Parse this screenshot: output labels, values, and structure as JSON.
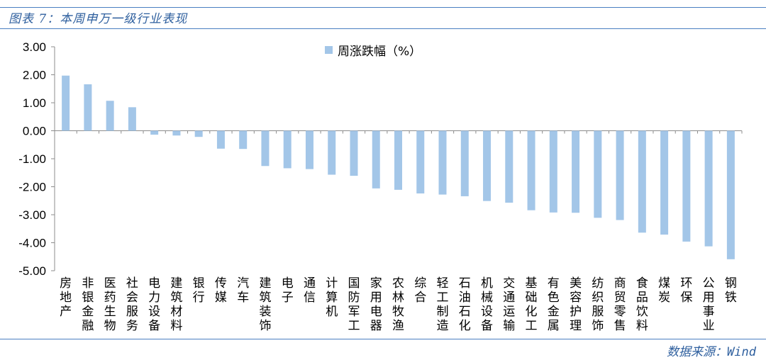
{
  "header": {
    "title": "图表 7：本周申万一级行业表现"
  },
  "footer": {
    "source": "数据来源：Wind"
  },
  "colors": {
    "bar": "#a3c6e8",
    "rule": "#4a7fc1",
    "title": "#2e5f9e"
  },
  "chart_data": {
    "type": "bar",
    "title": "",
    "xlabel": "",
    "ylabel": "",
    "ylim": [
      -5,
      3
    ],
    "yticks": [
      "3.00",
      "2.00",
      "1.00",
      "0.00",
      "-1.00",
      "-2.00",
      "-3.00",
      "-4.00",
      "-5.00"
    ],
    "grid": false,
    "legend_position": "top-center",
    "categories": [
      "房地产",
      "非银金融",
      "医药生物",
      "社会服务",
      "电力设备",
      "建筑材料",
      "银行",
      "传媒",
      "汽车",
      "建筑装饰",
      "电子",
      "通信",
      "计算机",
      "国防军工",
      "家用电器",
      "农林牧渔",
      "综合",
      "轻工制造",
      "石油石化",
      "机械设备",
      "交通运输",
      "基础化工",
      "有色金属",
      "美容护理",
      "纺织服饰",
      "商贸零售",
      "食品饮料",
      "煤炭",
      "环保",
      "公用事业",
      "钢铁"
    ],
    "series": [
      {
        "name": "周涨跌幅（%）",
        "values": [
          1.97,
          1.66,
          1.07,
          0.84,
          -0.14,
          -0.17,
          -0.22,
          -0.64,
          -0.65,
          -1.26,
          -1.34,
          -1.37,
          -1.57,
          -1.61,
          -2.06,
          -2.11,
          -2.24,
          -2.28,
          -2.34,
          -2.51,
          -2.57,
          -2.84,
          -2.92,
          -2.93,
          -3.11,
          -3.19,
          -3.64,
          -3.71,
          -3.96,
          -4.13,
          -4.59
        ]
      }
    ]
  }
}
